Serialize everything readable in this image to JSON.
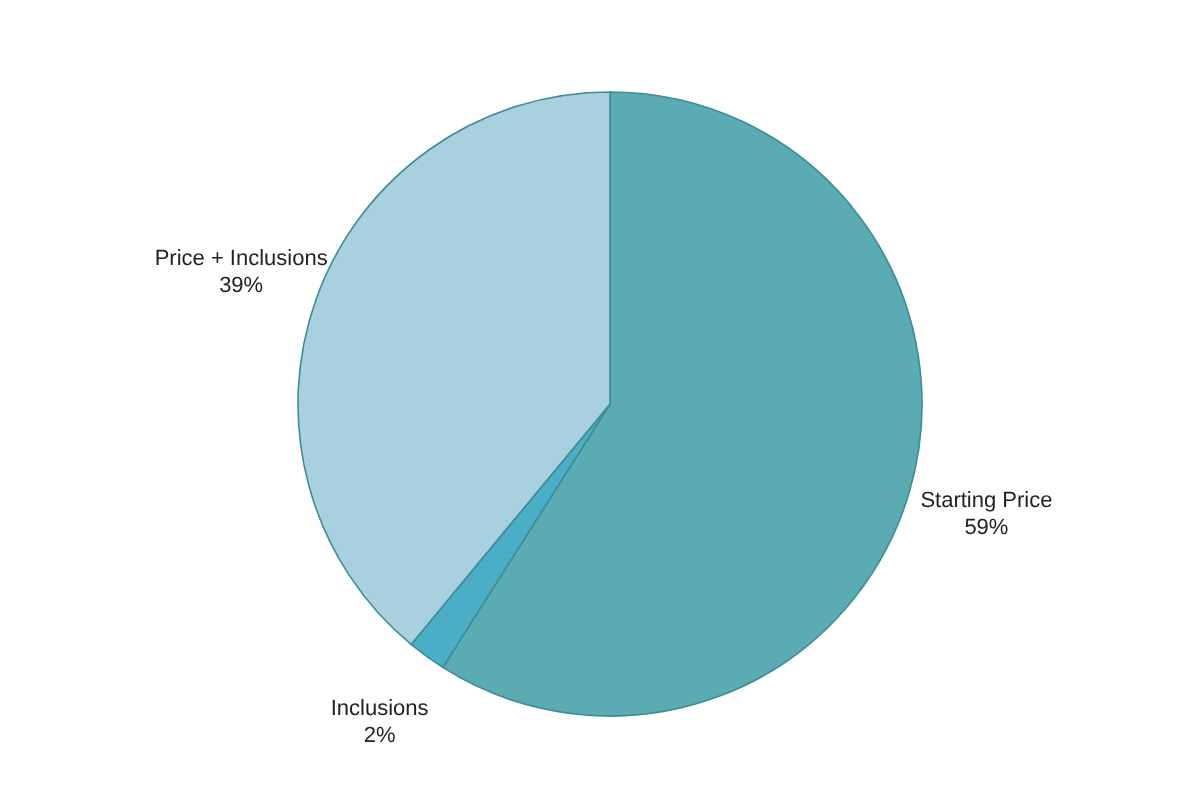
{
  "chart_data": {
    "type": "pie",
    "categories": [
      "Starting Price",
      "Inclusions",
      "Price + Inclusions"
    ],
    "values": [
      59,
      2,
      39
    ],
    "value_labels": [
      "59%",
      "2%",
      "39%"
    ],
    "colors": [
      "#5aabb2",
      "#4aaec6",
      "#a9d0de"
    ]
  }
}
